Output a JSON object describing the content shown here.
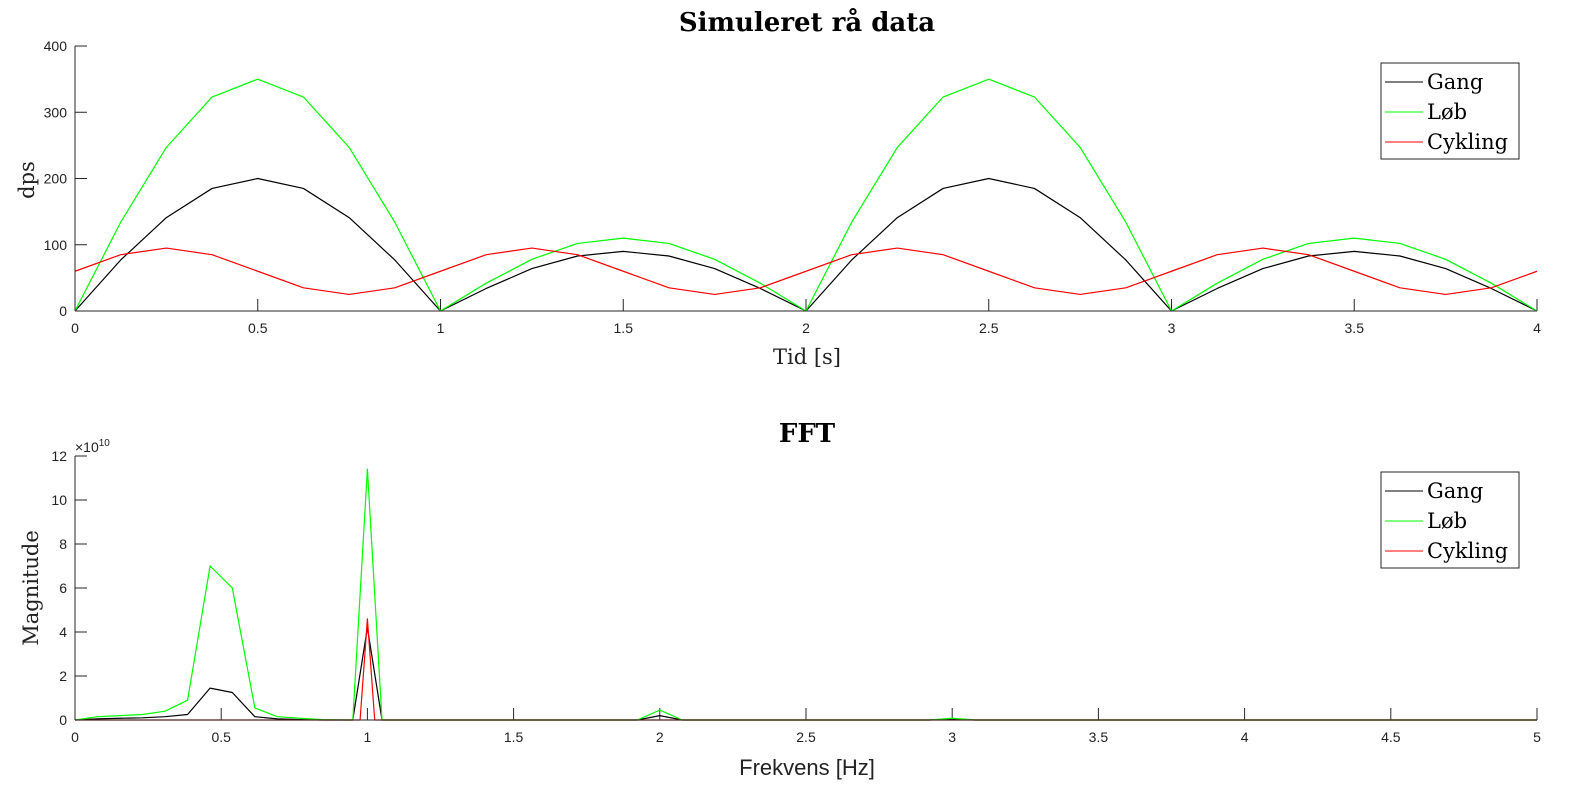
{
  "chart_data": [
    {
      "type": "line",
      "title": "Simuleret rå data",
      "xlabel": "Tid [s]",
      "ylabel": "dps",
      "xlim": [
        0,
        4
      ],
      "ylim": [
        0,
        400
      ],
      "xticks": [
        0,
        0.5,
        1,
        1.5,
        2,
        2.5,
        3,
        3.5,
        4
      ],
      "xtick_labels": [
        "0",
        "0.5",
        "1",
        "1.5",
        "2",
        "2.5",
        "3",
        "3.5",
        "4"
      ],
      "yticks": [
        0,
        100,
        200,
        300,
        400
      ],
      "ytick_labels": [
        "0",
        "100",
        "200",
        "300",
        "400"
      ],
      "legend_position": "top-right",
      "grid": false,
      "x": [
        0,
        0.125,
        0.25,
        0.375,
        0.5,
        0.625,
        0.75,
        0.875,
        1,
        1.125,
        1.25,
        1.375,
        1.5,
        1.625,
        1.75,
        1.875,
        2,
        2.125,
        2.25,
        2.375,
        2.5,
        2.625,
        2.75,
        2.875,
        3,
        3.125,
        3.25,
        3.375,
        3.5,
        3.625,
        3.75,
        3.875,
        4
      ],
      "series": [
        {
          "name": "Gang",
          "color": "#000000",
          "values": [
            0,
            77,
            141,
            185,
            200,
            185,
            141,
            77,
            0,
            34,
            64,
            83,
            90,
            83,
            64,
            34,
            0,
            77,
            141,
            185,
            200,
            185,
            141,
            77,
            0,
            34,
            64,
            83,
            90,
            83,
            64,
            34,
            0
          ]
        },
        {
          "name": "Løb",
          "color": "#00ff00",
          "values": [
            0,
            134,
            247,
            323,
            350,
            323,
            247,
            134,
            0,
            42,
            78,
            102,
            110,
            102,
            78,
            42,
            0,
            134,
            247,
            323,
            350,
            323,
            247,
            134,
            0,
            42,
            78,
            102,
            110,
            102,
            78,
            42,
            0
          ]
        },
        {
          "name": "Cykling",
          "color": "#ff0000",
          "values": [
            60,
            85,
            95,
            85,
            60,
            35,
            25,
            35,
            60,
            85,
            95,
            85,
            60,
            35,
            25,
            35,
            60,
            85,
            95,
            85,
            60,
            35,
            25,
            35,
            60,
            85,
            95,
            85,
            60,
            35,
            25,
            35,
            60
          ]
        }
      ]
    },
    {
      "type": "line",
      "title": "FFT",
      "xlabel": "Frekvens [Hz]",
      "ylabel": "Magnitude",
      "xlim": [
        0,
        5
      ],
      "ylim": [
        0,
        12
      ],
      "y_exponent_label": "×10",
      "y_exponent_power": "10",
      "xticks": [
        0,
        0.5,
        1,
        1.5,
        2,
        2.5,
        3,
        3.5,
        4,
        4.5,
        5
      ],
      "xtick_labels": [
        "0",
        "0.5",
        "1",
        "1.5",
        "2",
        "2.5",
        "3",
        "3.5",
        "4",
        "4.5",
        "5"
      ],
      "yticks": [
        0,
        2,
        4,
        6,
        8,
        10,
        12
      ],
      "ytick_labels": [
        "0",
        "2",
        "4",
        "6",
        "8",
        "10",
        "12"
      ],
      "legend_position": "top-right",
      "grid": false,
      "series": [
        {
          "name": "Gang",
          "color": "#000000",
          "x": [
            0,
            0.077,
            0.154,
            0.231,
            0.308,
            0.385,
            0.462,
            0.538,
            0.615,
            0.692,
            0.769,
            0.846,
            0.923,
            0.95,
            1.0,
            1.05,
            1.077,
            1.154,
            1.923,
            2.0,
            2.077,
            2.154,
            2.923,
            3.0,
            3.077,
            5
          ],
          "y": [
            0,
            0.05,
            0.08,
            0.1,
            0.15,
            0.25,
            1.45,
            1.25,
            0.15,
            0.05,
            0.02,
            0,
            0,
            0,
            4.2,
            0,
            0,
            0,
            0,
            0.2,
            0,
            0,
            0,
            0.05,
            0,
            0
          ]
        },
        {
          "name": "Løb",
          "color": "#00ff00",
          "x": [
            0,
            0.077,
            0.154,
            0.231,
            0.308,
            0.385,
            0.462,
            0.538,
            0.615,
            0.692,
            0.769,
            0.846,
            0.923,
            0.95,
            1.0,
            1.05,
            1.077,
            1.154,
            1.923,
            2.0,
            2.077,
            2.154,
            2.923,
            3.0,
            3.077,
            5
          ],
          "y": [
            0,
            0.15,
            0.2,
            0.25,
            0.4,
            0.9,
            7.0,
            6.0,
            0.55,
            0.15,
            0.08,
            0.02,
            0,
            0,
            11.4,
            0,
            0,
            0,
            0,
            0.45,
            0,
            0,
            0,
            0.08,
            0,
            0
          ]
        },
        {
          "name": "Cykling",
          "color": "#ff0000",
          "x": [
            0,
            0.9,
            0.95,
            0.975,
            1.0,
            1.025,
            1.05,
            1.1,
            5
          ],
          "y": [
            0,
            0,
            0,
            0,
            4.6,
            0,
            0,
            0,
            0
          ]
        }
      ]
    }
  ]
}
